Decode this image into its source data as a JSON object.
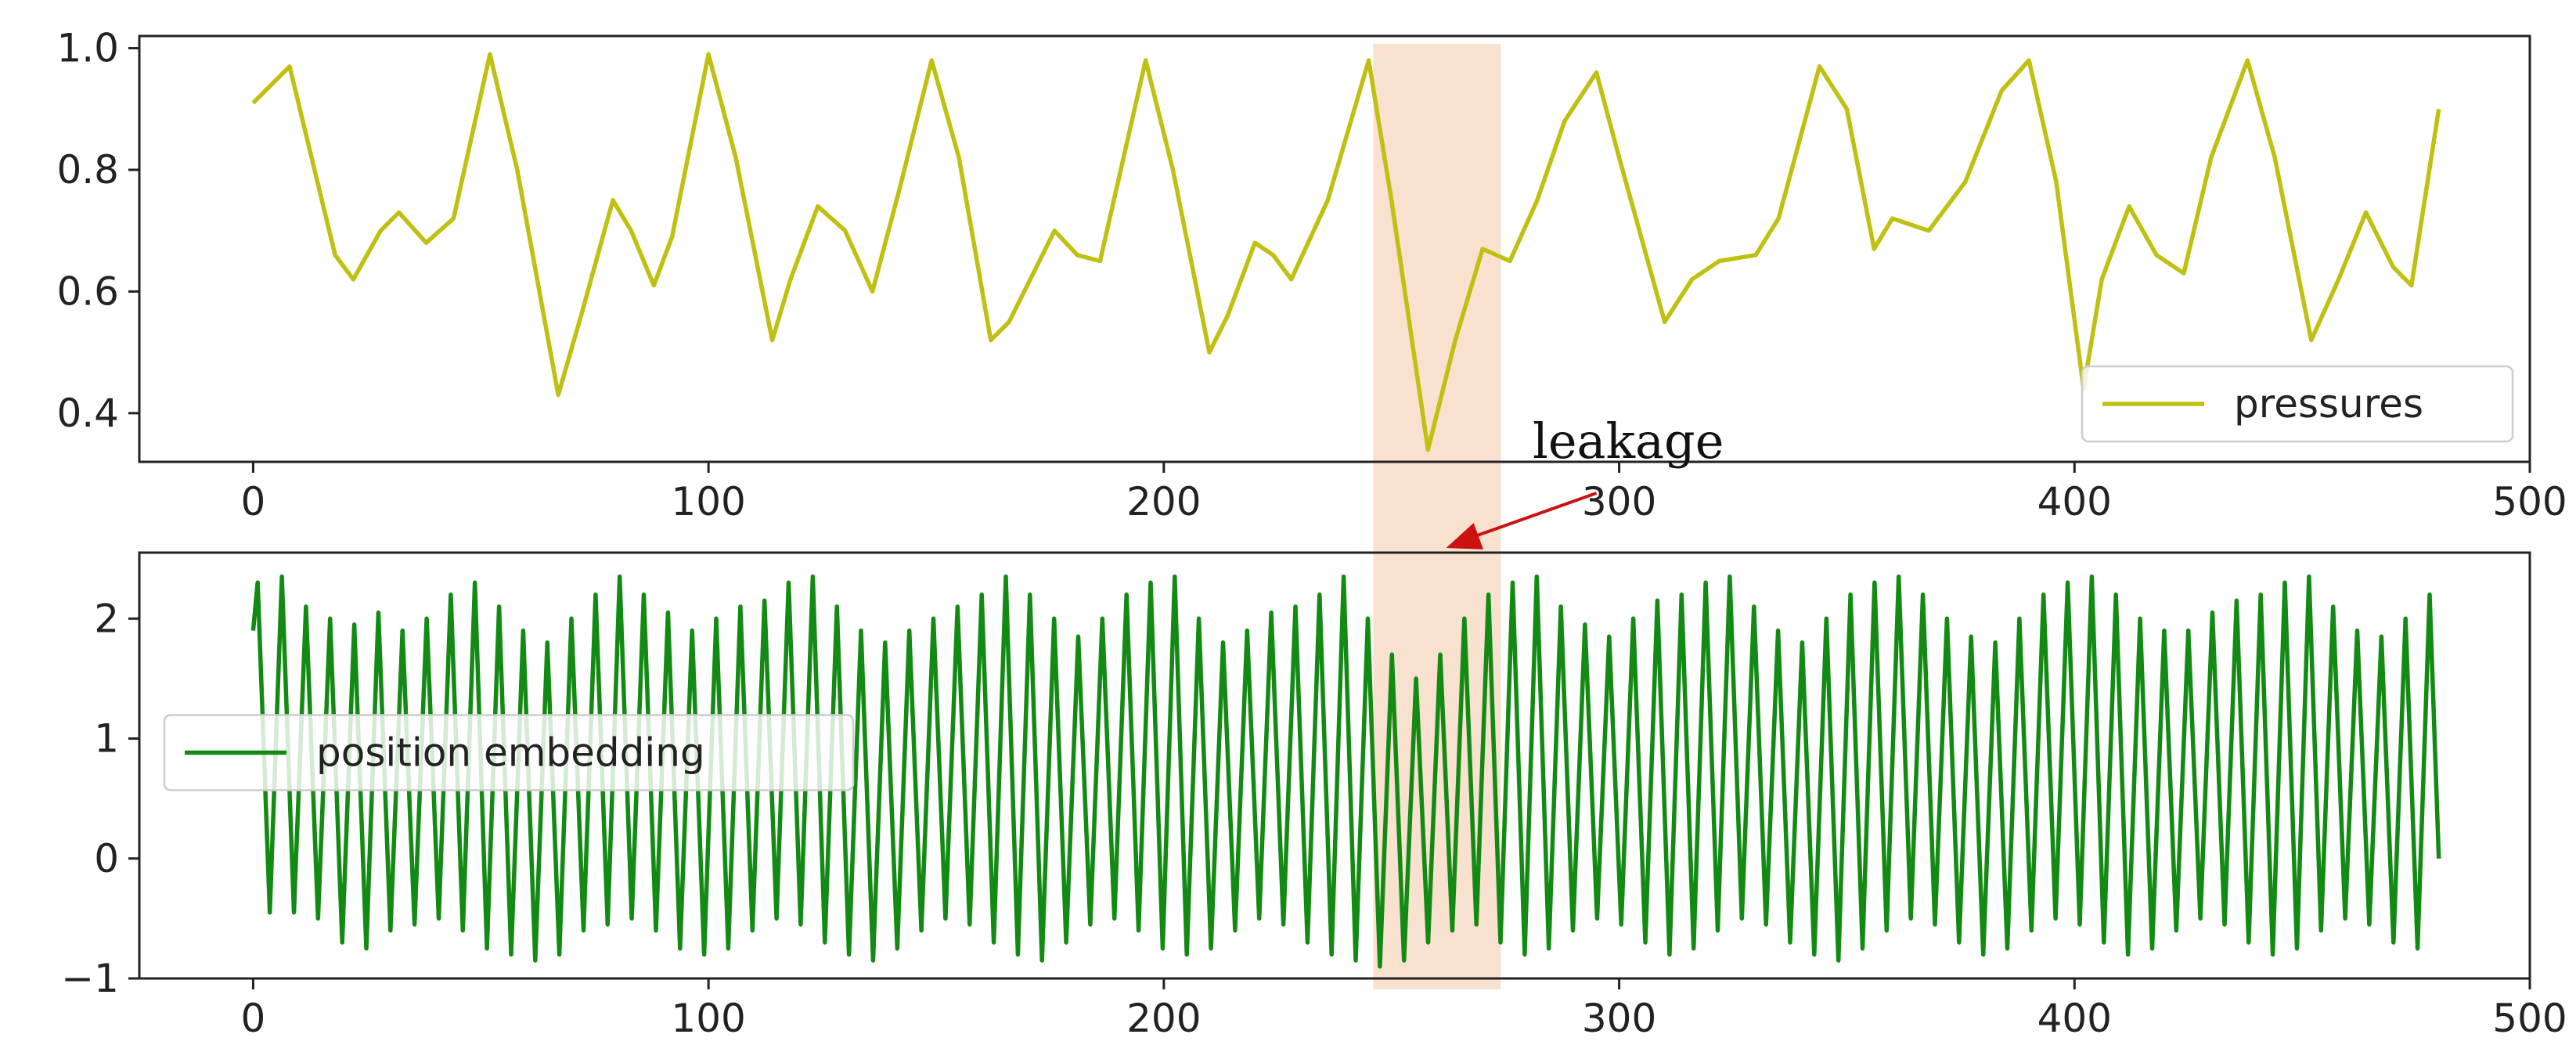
{
  "chart_data": [
    {
      "type": "line",
      "title": "",
      "xlabel": "",
      "ylabel": "",
      "xlim": [
        -25,
        500
      ],
      "ylim": [
        0.32,
        1.02
      ],
      "xticks": [
        0,
        100,
        200,
        300,
        400,
        500
      ],
      "yticks": [
        0.4,
        0.6,
        0.8,
        1.0
      ],
      "ytick_labels": [
        "0.4",
        "0.6",
        "0.8",
        "1.0"
      ],
      "grid": false,
      "legend_position": "lower-right",
      "series": [
        {
          "name": "pressures",
          "color": "#c0c012",
          "x": [
            0,
            8,
            18,
            22,
            28,
            32,
            38,
            44,
            52,
            58,
            67,
            72,
            79,
            83,
            88,
            92,
            100,
            106,
            114,
            118,
            124,
            130,
            136,
            142,
            149,
            155,
            162,
            166,
            172,
            176,
            181,
            186,
            196,
            202,
            210,
            214,
            220,
            224,
            228,
            236,
            245,
            250,
            258,
            264,
            270,
            276,
            282,
            288,
            295,
            300,
            310,
            316,
            322,
            330,
            335,
            344,
            350,
            356,
            360,
            368,
            376,
            384,
            390,
            396,
            402,
            406,
            412,
            418,
            424,
            430,
            438,
            444,
            452,
            458,
            464,
            470,
            474,
            480
          ],
          "values": [
            0.91,
            0.97,
            0.66,
            0.62,
            0.7,
            0.73,
            0.68,
            0.72,
            0.99,
            0.8,
            0.43,
            0.56,
            0.75,
            0.7,
            0.61,
            0.69,
            0.99,
            0.82,
            0.52,
            0.62,
            0.74,
            0.7,
            0.6,
            0.77,
            0.98,
            0.82,
            0.52,
            0.55,
            0.64,
            0.7,
            0.66,
            0.65,
            0.98,
            0.8,
            0.5,
            0.56,
            0.68,
            0.66,
            0.62,
            0.75,
            0.98,
            0.75,
            0.34,
            0.52,
            0.67,
            0.65,
            0.75,
            0.88,
            0.96,
            0.82,
            0.55,
            0.62,
            0.65,
            0.66,
            0.72,
            0.97,
            0.9,
            0.67,
            0.72,
            0.7,
            0.78,
            0.93,
            0.98,
            0.78,
            0.44,
            0.62,
            0.74,
            0.66,
            0.63,
            0.82,
            0.98,
            0.82,
            0.52,
            0.62,
            0.73,
            0.64,
            0.61,
            0.9
          ]
        }
      ],
      "highlight_band": {
        "x_start": 246,
        "x_end": 274,
        "color": "#f7d4bc"
      }
    },
    {
      "type": "line",
      "title": "",
      "xlabel": "",
      "ylabel": "",
      "xlim": [
        -25,
        500
      ],
      "ylim": [
        -1.0,
        2.55
      ],
      "xticks": [
        0,
        100,
        200,
        300,
        400,
        500
      ],
      "yticks": [
        -1,
        0,
        1,
        2
      ],
      "ytick_labels": [
        "−1",
        "0",
        "1",
        "2"
      ],
      "grid": false,
      "legend_position": "center-left",
      "series": [
        {
          "name": "position embedding",
          "color": "#138a13",
          "x_start": 0,
          "x_end": 480,
          "period": 5.3,
          "peaks": [
            2.3,
            2.35,
            2.1,
            2.0,
            1.95,
            2.05,
            1.9,
            2.0,
            2.2,
            2.3,
            2.1,
            1.9,
            1.8,
            2.0,
            2.2,
            2.35,
            2.2,
            2.05,
            1.9,
            2.0,
            2.1,
            2.15,
            2.3,
            2.35,
            2.1,
            1.9,
            1.8,
            1.9,
            2.0,
            2.1,
            2.2,
            2.35,
            2.2,
            2.0,
            1.85,
            2.0,
            2.2,
            2.3,
            2.35,
            2.0,
            1.8,
            1.9,
            2.05,
            2.1,
            2.2,
            2.35,
            2.0,
            1.7,
            1.5,
            1.7,
            2.0,
            2.2,
            2.3,
            2.35,
            2.1,
            1.95,
            1.85,
            2.0,
            2.15,
            2.2,
            2.3,
            2.35,
            2.1,
            1.9,
            1.8,
            2.0,
            2.2,
            2.3,
            2.35,
            2.2,
            2.0,
            1.85,
            1.8,
            2.0,
            2.2,
            2.3,
            2.35,
            2.2,
            2.0,
            1.9,
            1.9,
            2.05,
            2.15,
            2.2,
            2.3,
            2.35,
            2.1,
            1.9,
            1.85,
            2.0,
            2.2,
            2.15
          ],
          "troughs": [
            -0.45,
            -0.45,
            -0.5,
            -0.7,
            -0.75,
            -0.6,
            -0.55,
            -0.5,
            -0.6,
            -0.75,
            -0.8,
            -0.85,
            -0.8,
            -0.6,
            -0.55,
            -0.5,
            -0.6,
            -0.75,
            -0.8,
            -0.75,
            -0.6,
            -0.5,
            -0.55,
            -0.7,
            -0.8,
            -0.85,
            -0.75,
            -0.6,
            -0.5,
            -0.55,
            -0.7,
            -0.8,
            -0.85,
            -0.7,
            -0.55,
            -0.5,
            -0.6,
            -0.75,
            -0.8,
            -0.75,
            -0.6,
            -0.5,
            -0.55,
            -0.7,
            -0.8,
            -0.85,
            -0.9,
            -0.85,
            -0.7,
            -0.6,
            -0.55,
            -0.7,
            -0.8,
            -0.75,
            -0.6,
            -0.5,
            -0.55,
            -0.7,
            -0.8,
            -0.75,
            -0.6,
            -0.5,
            -0.55,
            -0.7,
            -0.8,
            -0.85,
            -0.75,
            -0.6,
            -0.5,
            -0.55,
            -0.7,
            -0.8,
            -0.75,
            -0.6,
            -0.5,
            -0.55,
            -0.7,
            -0.8,
            -0.75,
            -0.6,
            -0.5,
            -0.55,
            -0.7,
            -0.8,
            -0.75,
            -0.6,
            -0.5,
            -0.55,
            -0.7,
            -0.75,
            -0.6,
            -0.55
          ],
          "end_value": 0.0
        }
      ],
      "highlight_band": {
        "x_start": 246,
        "x_end": 274,
        "color": "#f7d4bc"
      }
    }
  ],
  "annotation": {
    "text": "leakage",
    "arrow_color": "#cc1111",
    "arrow_from_x": 295,
    "arrow_to_x": 262
  },
  "style": {
    "axes_color": "#222222",
    "background": "#ffffff"
  }
}
